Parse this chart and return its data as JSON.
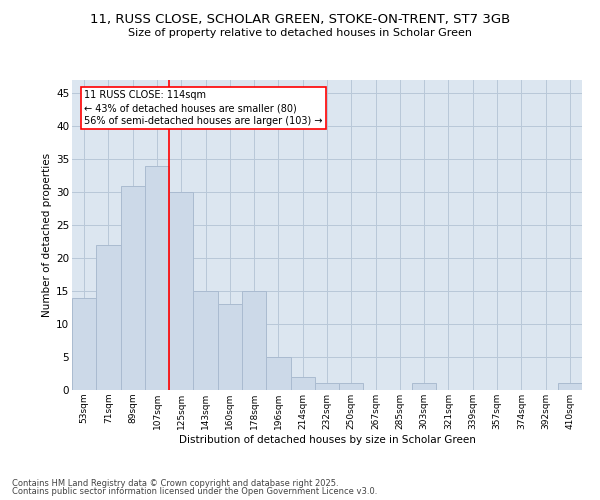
{
  "title": "11, RUSS CLOSE, SCHOLAR GREEN, STOKE-ON-TRENT, ST7 3GB",
  "subtitle": "Size of property relative to detached houses in Scholar Green",
  "xlabel": "Distribution of detached houses by size in Scholar Green",
  "ylabel": "Number of detached properties",
  "categories": [
    "53sqm",
    "71sqm",
    "89sqm",
    "107sqm",
    "125sqm",
    "143sqm",
    "160sqm",
    "178sqm",
    "196sqm",
    "214sqm",
    "232sqm",
    "250sqm",
    "267sqm",
    "285sqm",
    "303sqm",
    "321sqm",
    "339sqm",
    "357sqm",
    "374sqm",
    "392sqm",
    "410sqm"
  ],
  "values": [
    14,
    22,
    31,
    34,
    30,
    15,
    13,
    15,
    5,
    2,
    1,
    1,
    0,
    0,
    1,
    0,
    0,
    0,
    0,
    0,
    1
  ],
  "bar_color": "#ccd9e8",
  "bar_edge_color": "#aabbd0",
  "red_line_x": 3.5,
  "annotation_line1": "11 RUSS CLOSE: 114sqm",
  "annotation_line2": "← 43% of detached houses are smaller (80)",
  "annotation_line3": "56% of semi-detached houses are larger (103) →",
  "ylim": [
    0,
    47
  ],
  "yticks": [
    0,
    5,
    10,
    15,
    20,
    25,
    30,
    35,
    40,
    45
  ],
  "background_color": "#ffffff",
  "plot_bg_color": "#dce6f0",
  "grid_color": "#b8c8d8",
  "footer_line1": "Contains HM Land Registry data © Crown copyright and database right 2025.",
  "footer_line2": "Contains public sector information licensed under the Open Government Licence v3.0."
}
